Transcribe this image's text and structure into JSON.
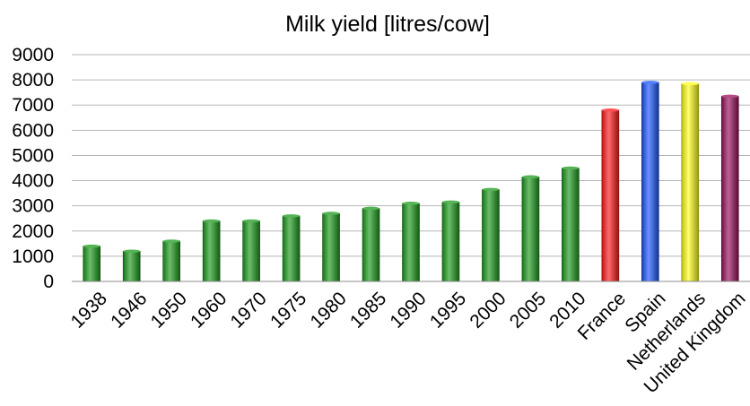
{
  "chart_data": {
    "type": "bar",
    "title": "Milk yield  [litres/cow]",
    "xlabel": "",
    "ylabel": "",
    "ylim": [
      0,
      9000
    ],
    "yticks": [
      "0",
      "1000",
      "2000",
      "3000",
      "4000",
      "5000",
      "6000",
      "7000",
      "8000",
      "9000"
    ],
    "grid": true,
    "legend": "none",
    "categories": [
      "1938",
      "1946",
      "1950",
      "1960",
      "1970",
      "1975",
      "1980",
      "1985",
      "1990",
      "1995",
      "2000",
      "2005",
      "2010",
      "France",
      "Spain",
      "Netherlands",
      "United Kingdom"
    ],
    "values": [
      1400,
      1200,
      1600,
      2400,
      2400,
      2600,
      2700,
      2900,
      3100,
      3150,
      3650,
      4150,
      4500,
      6800,
      7900,
      7850,
      7350
    ],
    "colors": [
      "#1c9b1c",
      "#1c9b1c",
      "#1c9b1c",
      "#1c9b1c",
      "#1c9b1c",
      "#1c9b1c",
      "#1c9b1c",
      "#1c9b1c",
      "#1c9b1c",
      "#1c9b1c",
      "#1c9b1c",
      "#1c9b1c",
      "#1c9b1c",
      "#ff1a1a",
      "#1a55ff",
      "#ffff1a",
      "#9a0f5c"
    ]
  }
}
